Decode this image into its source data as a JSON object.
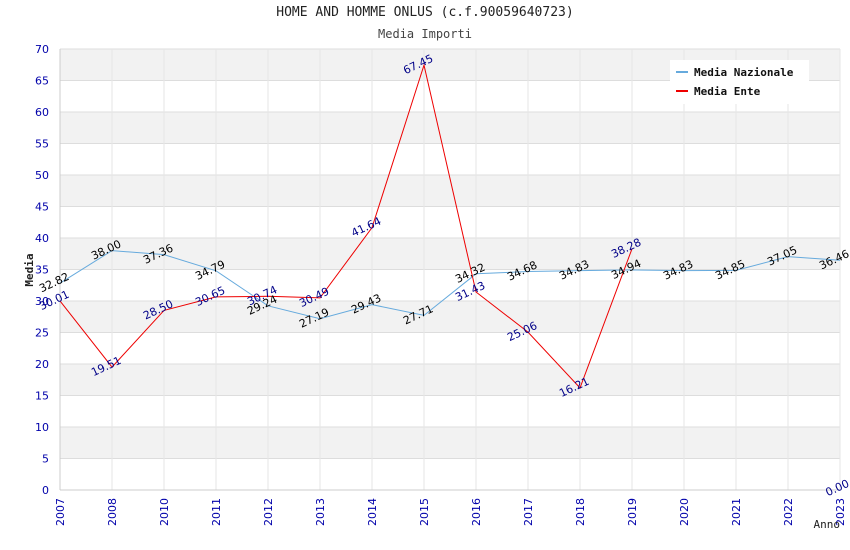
{
  "chart_data": {
    "type": "line",
    "title": "HOME AND HOMME ONLUS (c.f.90059640723)",
    "subtitle": "Media Importi",
    "xlabel": "Anno",
    "ylabel": "Media",
    "ylim": [
      0,
      70
    ],
    "yticks": [
      "0",
      "5",
      "10",
      "15",
      "20",
      "25",
      "30",
      "35",
      "40",
      "45",
      "50",
      "55",
      "60",
      "65",
      "70"
    ],
    "categories": [
      "2007",
      "2008",
      "2010",
      "2011",
      "2012",
      "2013",
      "2014",
      "2015",
      "2016",
      "2017",
      "2018",
      "2019",
      "2020",
      "2021",
      "2022",
      "2023"
    ],
    "grid": true,
    "legend_position": "top-right",
    "series": [
      {
        "name": "Media Nazionale",
        "color": "#66aadd",
        "label_color": "#000000",
        "values": [
          32.82,
          38.0,
          37.36,
          34.79,
          29.24,
          27.19,
          29.43,
          27.71,
          34.32,
          34.68,
          34.83,
          34.94,
          34.83,
          34.85,
          37.05,
          36.46
        ],
        "labels": [
          "32.82",
          "38.00",
          "37.36",
          "34.79",
          "29.24",
          "27.19",
          "29.43",
          "27.71",
          "34.32",
          "34.68",
          "34.83",
          "34.94",
          "34.83",
          "34.85",
          "37.05",
          "36.46"
        ]
      },
      {
        "name": "Media Ente",
        "color": "#ee0000",
        "label_color": "#000088",
        "values": [
          30.01,
          19.51,
          28.5,
          30.65,
          30.74,
          30.49,
          41.64,
          67.45,
          31.43,
          25.06,
          16.21,
          38.28,
          null,
          null,
          null,
          0.0
        ],
        "labels": [
          "30.01",
          "19.51",
          "28.50",
          "30.65",
          "30.74",
          "30.49",
          "41.64",
          "67.45",
          "31.43",
          "25.06",
          "16.21",
          "38.28",
          null,
          null,
          null,
          "0.00"
        ]
      }
    ]
  }
}
